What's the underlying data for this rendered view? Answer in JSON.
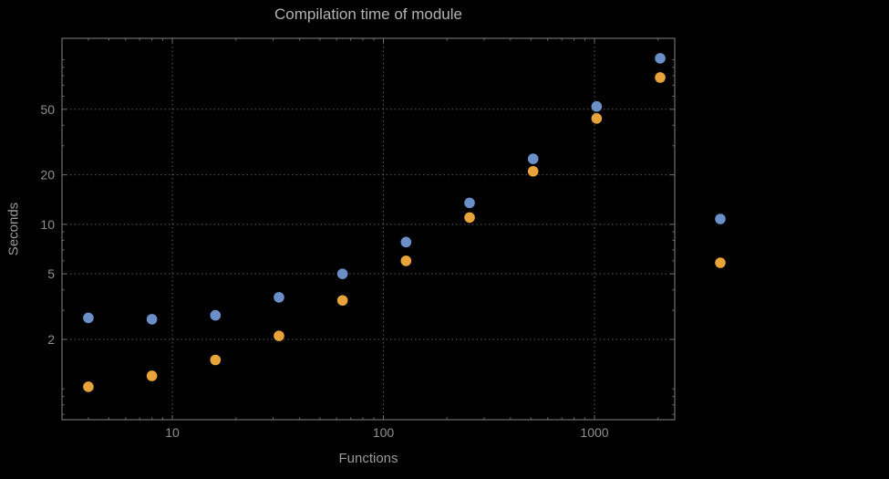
{
  "chart_data": {
    "type": "scatter",
    "title": "Compilation time of module",
    "xlabel": "Functions",
    "ylabel": "Seconds",
    "x_scale": "log",
    "y_scale": "log",
    "xlim": [
      3,
      2400
    ],
    "ylim": [
      0.65,
      135
    ],
    "x_ticks": [
      10,
      100,
      1000
    ],
    "x_tick_labels": [
      "10",
      "100",
      "1000"
    ],
    "y_ticks": [
      2,
      5,
      10,
      20,
      50
    ],
    "y_tick_labels": [
      "2",
      "5",
      "10",
      "20",
      "50"
    ],
    "grid": true,
    "x": [
      4,
      8,
      16,
      32,
      64,
      128,
      256,
      512,
      1024,
      2048
    ],
    "series": [
      {
        "name": "blue",
        "color": "#6b8fc8",
        "values": [
          2.7,
          2.65,
          2.8,
          3.6,
          5.0,
          7.8,
          13.5,
          25,
          52,
          102
        ]
      },
      {
        "name": "orange",
        "color": "#e8a33a",
        "values": [
          1.03,
          1.2,
          1.5,
          2.1,
          3.45,
          6.0,
          11,
          21,
          44,
          78
        ]
      }
    ],
    "legend": {
      "position": "right-outside",
      "labels_visible": false,
      "markers": [
        {
          "series": "blue",
          "color": "#6b8fc8"
        },
        {
          "series": "orange",
          "color": "#e8a33a"
        }
      ]
    }
  },
  "colors": {
    "background": "#000000",
    "frame": "#6e6e6e",
    "grid": "#5a5a5a",
    "tick_label": "#8f8f8f",
    "title": "#b2b2b2",
    "axis_label": "#9a9a9a"
  }
}
